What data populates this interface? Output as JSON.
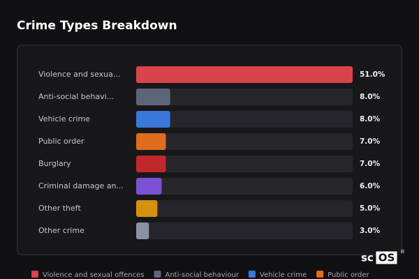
{
  "chart_data": {
    "type": "hbar",
    "title": "Crime Types Breakdown",
    "categories": [
      "Violence and sexua...",
      "Anti-social behavi...",
      "Vehicle crime",
      "Public order",
      "Burglary",
      "Criminal damage an...",
      "Other theft",
      "Other crime"
    ],
    "values": [
      51,
      8,
      8,
      7,
      7,
      6,
      5,
      3
    ],
    "value_labels": [
      "51.0%",
      "8.0%",
      "8.0%",
      "7.0%",
      "7.0%",
      "6.0%",
      "5.0%",
      "3.0%"
    ],
    "colors": [
      "#d9434a",
      "#5c6678",
      "#3a78d9",
      "#e06c1e",
      "#c0282b",
      "#7b52d4",
      "#d4900f",
      "#8a93a3"
    ],
    "legend": [
      "Violence and sexual offences",
      "Anti-social behaviour",
      "Vehicle crime",
      "Public order"
    ]
  },
  "logo": {
    "prefix": "sc",
    "boxed": "OS",
    "mark": "®"
  }
}
